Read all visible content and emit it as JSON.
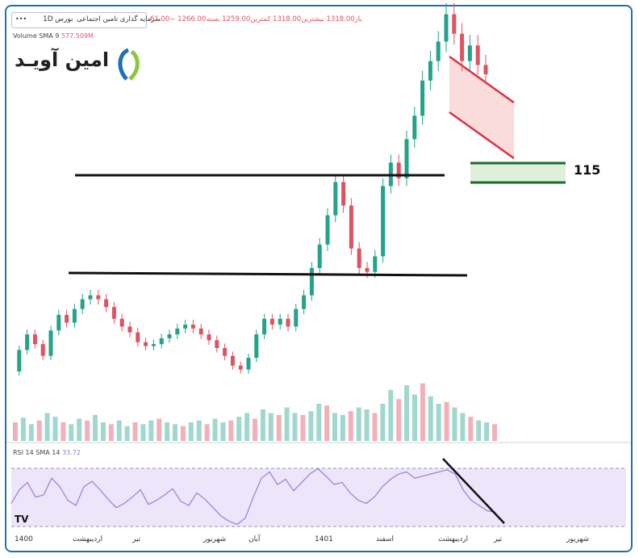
{
  "header": {
    "symbol_title": "سرمایه گذاری تامین اجتماعی",
    "interval": "1D",
    "exchange": "بورس",
    "menu_glyph": "•••",
    "ohlc_text": "باز1318.00  بیشترین1318.00  کمترین1259.00  بسته1266.00  −61.00"
  },
  "logo": {
    "text": "امین آویـد"
  },
  "volume_indicator": {
    "label": "Volume SMA 9",
    "value": "577.509M"
  },
  "rsi_indicator": {
    "label": "RSI 14 SMA 14",
    "value": "33.72"
  },
  "annotations": {
    "level_value": "115"
  },
  "x_axis": [
    "1400",
    "اردیبهشت",
    "تیر",
    "شهریور",
    "آبان",
    "1401",
    "اسفند",
    "اردیبهشت",
    "تیر",
    "شهریور"
  ],
  "colors": {
    "up": "#22a38a",
    "down": "#e05260",
    "rsi_line": "#9b7ad6",
    "rsi_band": "#ede6fb",
    "support_box": "#dff0da",
    "channel_fill": "#fbdcdc",
    "channel_line": "#dd3344",
    "frame": "#1f6fb3"
  },
  "chart_data": {
    "type": "candlestick",
    "x": "daily sessions, Persian calendar 1400–1401",
    "price_series": [
      {
        "d": 0,
        "c": 505
      },
      {
        "d": 4,
        "c": 560
      },
      {
        "d": 8,
        "c": 600
      },
      {
        "d": 12,
        "c": 575
      },
      {
        "d": 16,
        "c": 545
      },
      {
        "d": 20,
        "c": 610
      },
      {
        "d": 24,
        "c": 650
      },
      {
        "d": 28,
        "c": 630
      },
      {
        "d": 32,
        "c": 665
      },
      {
        "d": 36,
        "c": 690
      },
      {
        "d": 40,
        "c": 700
      },
      {
        "d": 44,
        "c": 690
      },
      {
        "d": 48,
        "c": 670
      },
      {
        "d": 52,
        "c": 640
      },
      {
        "d": 56,
        "c": 620
      },
      {
        "d": 60,
        "c": 605
      },
      {
        "d": 64,
        "c": 580
      },
      {
        "d": 68,
        "c": 570
      },
      {
        "d": 72,
        "c": 575
      },
      {
        "d": 76,
        "c": 590
      },
      {
        "d": 80,
        "c": 600
      },
      {
        "d": 84,
        "c": 615
      },
      {
        "d": 88,
        "c": 625
      },
      {
        "d": 92,
        "c": 615
      },
      {
        "d": 96,
        "c": 600
      },
      {
        "d": 100,
        "c": 585
      },
      {
        "d": 104,
        "c": 565
      },
      {
        "d": 108,
        "c": 545
      },
      {
        "d": 112,
        "c": 520
      },
      {
        "d": 116,
        "c": 510
      },
      {
        "d": 120,
        "c": 540
      },
      {
        "d": 124,
        "c": 600
      },
      {
        "d": 128,
        "c": 640
      },
      {
        "d": 132,
        "c": 625
      },
      {
        "d": 136,
        "c": 640
      },
      {
        "d": 140,
        "c": 620
      },
      {
        "d": 144,
        "c": 665
      },
      {
        "d": 148,
        "c": 700
      },
      {
        "d": 152,
        "c": 770
      },
      {
        "d": 156,
        "c": 830
      },
      {
        "d": 160,
        "c": 905
      },
      {
        "d": 164,
        "c": 990
      },
      {
        "d": 168,
        "c": 930
      },
      {
        "d": 172,
        "c": 820
      },
      {
        "d": 176,
        "c": 770
      },
      {
        "d": 180,
        "c": 760
      },
      {
        "d": 184,
        "c": 800
      },
      {
        "d": 188,
        "c": 980
      },
      {
        "d": 192,
        "c": 1040
      },
      {
        "d": 196,
        "c": 1000
      },
      {
        "d": 200,
        "c": 1100
      },
      {
        "d": 204,
        "c": 1160
      },
      {
        "d": 208,
        "c": 1250
      },
      {
        "d": 212,
        "c": 1300
      },
      {
        "d": 216,
        "c": 1350
      },
      {
        "d": 220,
        "c": 1420
      },
      {
        "d": 224,
        "c": 1370
      },
      {
        "d": 228,
        "c": 1300
      },
      {
        "d": 232,
        "c": 1340
      },
      {
        "d": 236,
        "c": 1290
      },
      {
        "d": 240,
        "c": 1266
      }
    ],
    "rsi": [
      42,
      55,
      62,
      48,
      50,
      66,
      58,
      45,
      40,
      58,
      63,
      55,
      46,
      38,
      42,
      48,
      55,
      41,
      45,
      50,
      56,
      44,
      40,
      52,
      46,
      38,
      30,
      25,
      22,
      28,
      48,
      66,
      72,
      60,
      65,
      54,
      62,
      70,
      75,
      68,
      60,
      62,
      52,
      45,
      42,
      48,
      58,
      65,
      70,
      72,
      66,
      68,
      70,
      72,
      74,
      70,
      55,
      45,
      40,
      35,
      33.72
    ],
    "volume": [
      20,
      25,
      18,
      22,
      30,
      26,
      20,
      18,
      24,
      22,
      28,
      20,
      18,
      22,
      16,
      20,
      18,
      22,
      24,
      20,
      18,
      16,
      20,
      22,
      18,
      24,
      20,
      22,
      26,
      30,
      24,
      34,
      30,
      28,
      36,
      30,
      28,
      32,
      40,
      38,
      30,
      28,
      32,
      36,
      34,
      30,
      40,
      55,
      45,
      60,
      50,
      62,
      48,
      40,
      42,
      36,
      30,
      26,
      22,
      20,
      18
    ],
    "annotations": [
      {
        "type": "horizontal_line",
        "label": "",
        "level": 640
      },
      {
        "type": "horizontal_line",
        "label": "",
        "level": 1000
      },
      {
        "type": "support_zone",
        "label": "115"
      },
      {
        "type": "descending_channel",
        "label": ""
      },
      {
        "type": "rsi_trendline",
        "label": ""
      }
    ],
    "legend": "top-left",
    "grid": false
  }
}
